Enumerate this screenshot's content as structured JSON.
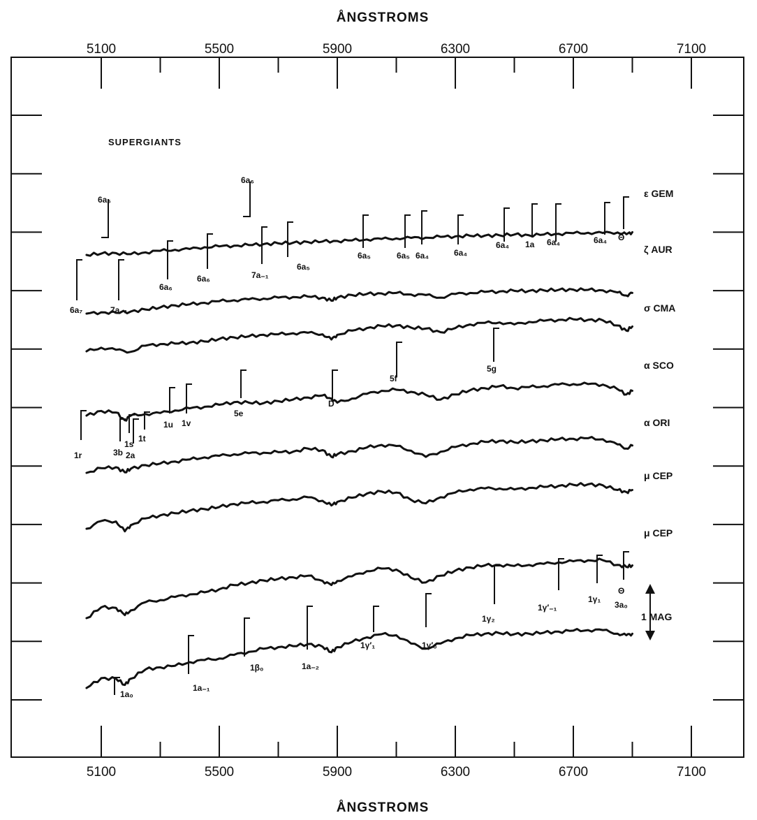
{
  "chart_data": {
    "type": "line",
    "x_axis_label_top": "ÅNGSTROMS",
    "x_axis_label_bottom": "ÅNGSTROMS",
    "x_range": [
      4800,
      7200
    ],
    "x_ticks": [
      5100,
      5500,
      5900,
      6300,
      6700,
      7100
    ],
    "x_ticks_labeled": [
      "5100",
      "5500",
      "5900",
      "6300",
      "6700",
      "7100"
    ],
    "x_minor_ticks": [
      5300,
      5700,
      6100,
      6500,
      6900
    ],
    "y_axis_values_printed": false,
    "group_label": "SUPERGIANTS",
    "scale_bar_label": "1 MAG",
    "scale_bar_magnitude": 1,
    "series": [
      {
        "name": "ε GEM",
        "x": [
          5050,
          5100,
          5150,
          5200,
          5250,
          5300,
          5350,
          5400,
          5450,
          5500,
          5550,
          5600,
          5650,
          5700,
          5750,
          5800,
          5850,
          5900,
          5950,
          6000,
          6050,
          6100,
          6150,
          6200,
          6250,
          6300,
          6350,
          6400,
          6450,
          6500,
          6550,
          6600,
          6650,
          6700,
          6750,
          6800,
          6850,
          6880,
          6900
        ],
        "y": [
          0.0,
          0.05,
          0.07,
          0.03,
          0.1,
          0.16,
          0.2,
          0.23,
          0.3,
          0.33,
          0.36,
          0.38,
          0.42,
          0.45,
          0.47,
          0.5,
          0.52,
          0.54,
          0.56,
          0.6,
          0.62,
          0.64,
          0.66,
          0.67,
          0.7,
          0.72,
          0.74,
          0.75,
          0.76,
          0.79,
          0.76,
          0.79,
          0.82,
          0.84,
          0.86,
          0.85,
          0.87,
          0.8,
          0.88
        ]
      },
      {
        "name": "ζ AUR",
        "x": [
          5050,
          5100,
          5150,
          5200,
          5250,
          5300,
          5350,
          5400,
          5450,
          5500,
          5550,
          5600,
          5650,
          5700,
          5750,
          5800,
          5850,
          5880,
          5900,
          5950,
          6000,
          6050,
          6100,
          6150,
          6200,
          6250,
          6300,
          6350,
          6400,
          6450,
          6500,
          6550,
          6600,
          6650,
          6700,
          6750,
          6800,
          6850,
          6880,
          6900
        ],
        "y": [
          0.0,
          0.05,
          0.03,
          0.08,
          0.16,
          0.24,
          0.32,
          0.36,
          0.42,
          0.48,
          0.52,
          0.55,
          0.58,
          0.62,
          0.64,
          0.66,
          0.62,
          0.5,
          0.62,
          0.72,
          0.76,
          0.78,
          0.8,
          0.74,
          0.72,
          0.62,
          0.76,
          0.8,
          0.84,
          0.86,
          0.88,
          0.88,
          0.9,
          0.92,
          0.93,
          0.92,
          0.9,
          0.82,
          0.7,
          0.8
        ]
      },
      {
        "name": "σ CMA",
        "x": [
          5050,
          5100,
          5150,
          5200,
          5250,
          5300,
          5350,
          5400,
          5450,
          5500,
          5550,
          5600,
          5650,
          5700,
          5750,
          5800,
          5850,
          5880,
          5900,
          5950,
          6000,
          6050,
          6100,
          6150,
          6200,
          6250,
          6300,
          6350,
          6400,
          6450,
          6500,
          6550,
          6600,
          6650,
          6700,
          6750,
          6800,
          6850,
          6880,
          6900
        ],
        "y": [
          0.0,
          0.14,
          0.06,
          -0.02,
          0.22,
          0.28,
          0.3,
          0.34,
          0.38,
          0.48,
          0.54,
          0.58,
          0.64,
          0.66,
          0.7,
          0.72,
          0.66,
          0.46,
          0.64,
          0.8,
          0.9,
          0.98,
          1.0,
          0.92,
          0.88,
          0.74,
          0.9,
          1.04,
          1.1,
          1.12,
          1.04,
          1.14,
          1.18,
          1.22,
          1.24,
          1.22,
          1.2,
          1.0,
          0.8,
          0.96
        ]
      },
      {
        "name": "α SCO",
        "x": [
          5050,
          5100,
          5150,
          5180,
          5200,
          5250,
          5300,
          5350,
          5400,
          5450,
          5500,
          5550,
          5600,
          5650,
          5700,
          5750,
          5800,
          5850,
          5880,
          5900,
          5950,
          6000,
          6050,
          6100,
          6150,
          6200,
          6250,
          6300,
          6350,
          6400,
          6450,
          6500,
          6550,
          6600,
          6650,
          6700,
          6750,
          6800,
          6850,
          6880,
          6900
        ],
        "y": [
          0.0,
          0.18,
          0.12,
          -0.18,
          0.0,
          0.06,
          0.1,
          0.2,
          0.28,
          0.34,
          0.42,
          0.52,
          0.5,
          0.48,
          0.56,
          0.62,
          0.7,
          0.78,
          0.66,
          0.5,
          0.66,
          0.84,
          0.96,
          1.0,
          0.92,
          0.8,
          0.62,
          0.82,
          0.98,
          1.06,
          1.14,
          1.06,
          1.1,
          1.14,
          1.2,
          1.22,
          1.22,
          1.2,
          1.02,
          0.82,
          0.96
        ]
      },
      {
        "name": "α ORI",
        "x": [
          5050,
          5100,
          5150,
          5180,
          5200,
          5250,
          5300,
          5350,
          5400,
          5450,
          5500,
          5550,
          5600,
          5650,
          5700,
          5750,
          5800,
          5850,
          5880,
          5900,
          5950,
          6000,
          6050,
          6100,
          6150,
          6200,
          6250,
          6300,
          6350,
          6400,
          6450,
          6500,
          6550,
          6600,
          6650,
          6700,
          6750,
          6800,
          6850,
          6880,
          6900
        ],
        "y": [
          0.0,
          0.18,
          0.22,
          0.02,
          0.16,
          0.3,
          0.36,
          0.44,
          0.52,
          0.6,
          0.66,
          0.72,
          0.76,
          0.78,
          0.8,
          0.82,
          0.94,
          0.88,
          0.62,
          0.72,
          0.84,
          0.98,
          1.08,
          1.04,
          0.86,
          0.62,
          0.82,
          1.0,
          1.12,
          1.2,
          1.24,
          1.18,
          1.22,
          1.26,
          1.3,
          1.32,
          1.34,
          1.3,
          1.1,
          0.94,
          1.06
        ]
      },
      {
        "name": "μ CEP",
        "x": [
          5050,
          5100,
          5150,
          5180,
          5200,
          5250,
          5300,
          5350,
          5400,
          5450,
          5500,
          5550,
          5600,
          5650,
          5700,
          5750,
          5800,
          5850,
          5880,
          5900,
          5950,
          6000,
          6050,
          6100,
          6150,
          6200,
          6250,
          6300,
          6350,
          6400,
          6450,
          6500,
          6550,
          6600,
          6650,
          6700,
          6750,
          6800,
          6850,
          6880,
          6900
        ],
        "y": [
          0.0,
          0.3,
          0.28,
          -0.1,
          0.14,
          0.4,
          0.52,
          0.6,
          0.7,
          0.76,
          0.84,
          0.96,
          1.0,
          1.04,
          1.1,
          1.14,
          1.22,
          1.08,
          0.9,
          1.04,
          1.2,
          1.36,
          1.44,
          1.4,
          1.12,
          0.98,
          1.22,
          1.4,
          1.52,
          1.56,
          1.56,
          1.52,
          1.58,
          1.62,
          1.66,
          1.7,
          1.72,
          1.68,
          1.5,
          1.42,
          1.5
        ]
      },
      {
        "name": "μ CEP",
        "x": [
          5050,
          5100,
          5150,
          5180,
          5200,
          5250,
          5300,
          5350,
          5400,
          5450,
          5500,
          5550,
          5600,
          5650,
          5700,
          5750,
          5800,
          5850,
          5880,
          5900,
          5950,
          6000,
          6050,
          6100,
          6150,
          6200,
          6250,
          6300,
          6350,
          6400,
          6450,
          6500,
          6550,
          6600,
          6650,
          6700,
          6750,
          6800,
          6850,
          6880,
          6900
        ],
        "y": [
          0.0,
          0.42,
          0.4,
          0.12,
          0.3,
          0.62,
          0.7,
          0.82,
          0.92,
          1.0,
          1.12,
          1.28,
          1.36,
          1.46,
          1.52,
          1.58,
          1.64,
          1.44,
          1.28,
          1.44,
          1.62,
          1.82,
          1.92,
          1.88,
          1.56,
          1.38,
          1.64,
          1.84,
          1.96,
          2.04,
          2.06,
          2.02,
          2.06,
          2.1,
          2.16,
          2.2,
          2.24,
          2.24,
          2.06,
          1.98,
          2.04
        ]
      },
      {
        "name": "",
        "x": [
          5050,
          5100,
          5150,
          5180,
          5200,
          5250,
          5300,
          5350,
          5400,
          5450,
          5500,
          5550,
          5600,
          5650,
          5700,
          5750,
          5800,
          5850,
          5880,
          5900,
          5950,
          6000,
          6050,
          6100,
          6150,
          6200,
          6250,
          6300,
          6350,
          6400,
          6450,
          6500,
          6550,
          6600,
          6650,
          6700,
          6750,
          6800,
          6850,
          6880,
          6900
        ],
        "y": [
          0.0,
          0.38,
          0.36,
          0.12,
          0.36,
          0.72,
          0.8,
          0.86,
          1.0,
          1.08,
          1.14,
          1.28,
          1.4,
          1.52,
          1.58,
          1.62,
          1.7,
          1.6,
          1.38,
          1.58,
          1.78,
          1.96,
          2.08,
          2.04,
          1.72,
          1.52,
          1.72,
          1.92,
          2.04,
          2.1,
          2.12,
          2.08,
          2.1,
          2.14,
          2.18,
          2.22,
          2.24,
          2.24,
          2.1,
          2.04,
          2.1
        ]
      }
    ],
    "annotations": [
      {
        "label": "6a₆",
        "wavelength": 5120,
        "attached_to": "ε GEM"
      },
      {
        "label": "6a₆",
        "wavelength": 5580,
        "attached_to": "ε GEM"
      },
      {
        "label": "6a₇",
        "wavelength": 5060,
        "attached_to": "ε GEM"
      },
      {
        "label": "7a₋₁",
        "wavelength": 5140,
        "attached_to": "ε GEM"
      },
      {
        "label": "6a₆",
        "wavelength": 5310,
        "attached_to": "ε GEM"
      },
      {
        "label": "6a₆",
        "wavelength": 5430,
        "attached_to": "ε GEM"
      },
      {
        "label": "7a₋₁",
        "wavelength": 5620,
        "attached_to": "ε GEM"
      },
      {
        "label": "6a₅",
        "wavelength": 5740,
        "attached_to": "ε GEM"
      },
      {
        "label": "6a₅",
        "wavelength": 5970,
        "attached_to": "ε GEM"
      },
      {
        "label": "6a₅",
        "wavelength": 6110,
        "attached_to": "ε GEM"
      },
      {
        "label": "6a₄",
        "wavelength": 6150,
        "attached_to": "ε GEM"
      },
      {
        "label": "6a₄",
        "wavelength": 6300,
        "attached_to": "ε GEM"
      },
      {
        "label": "6a₄",
        "wavelength": 6480,
        "attached_to": "ε GEM"
      },
      {
        "label": "1a",
        "wavelength": 6570,
        "attached_to": "ε GEM"
      },
      {
        "label": "6a₄",
        "wavelength": 6650,
        "attached_to": "ε GEM"
      },
      {
        "label": "6a₄",
        "wavelength": 6810,
        "attached_to": "ε GEM"
      },
      {
        "label": "Θ",
        "wavelength": 6880,
        "attached_to": "ε GEM"
      },
      {
        "label": "D",
        "wavelength": 5893,
        "attached_to": "σ CMA"
      },
      {
        "label": "5f",
        "wavelength": 6090,
        "attached_to": "σ CMA"
      },
      {
        "label": "5g",
        "wavelength": 6440,
        "attached_to": "σ CMA"
      },
      {
        "label": "5e",
        "wavelength": 5640,
        "attached_to": "σ CMA"
      },
      {
        "label": "1r",
        "wavelength": 5070,
        "attached_to": "α SCO"
      },
      {
        "label": "3b",
        "wavelength": 5170,
        "attached_to": "α SCO"
      },
      {
        "label": "1s",
        "wavelength": 5190,
        "attached_to": "α SCO"
      },
      {
        "label": "2a",
        "wavelength": 5200,
        "attached_to": "α SCO"
      },
      {
        "label": "1t",
        "wavelength": 5240,
        "attached_to": "α SCO"
      },
      {
        "label": "1u",
        "wavelength": 5350,
        "attached_to": "α SCO"
      },
      {
        "label": "1v",
        "wavelength": 5410,
        "attached_to": "α SCO"
      },
      {
        "label": "1a₀",
        "wavelength": 5160,
        "attached_to": "bottom"
      },
      {
        "label": "1a₋₁",
        "wavelength": 5430,
        "attached_to": "bottom"
      },
      {
        "label": "1β₀",
        "wavelength": 5680,
        "attached_to": "bottom"
      },
      {
        "label": "1a₋₂",
        "wavelength": 5840,
        "attached_to": "bottom"
      },
      {
        "label": "1γ′₁",
        "wavelength": 6010,
        "attached_to": "bottom"
      },
      {
        "label": "1γ′₀",
        "wavelength": 6200,
        "attached_to": "bottom"
      },
      {
        "label": "1γ₂",
        "wavelength": 6430,
        "attached_to": "bottom"
      },
      {
        "label": "1γ′₋₁",
        "wavelength": 6620,
        "attached_to": "bottom"
      },
      {
        "label": "1γ₁",
        "wavelength": 6750,
        "attached_to": "bottom"
      },
      {
        "label": "Θ",
        "wavelength": 6880,
        "attached_to": "bottom"
      },
      {
        "label": "3a₀",
        "wavelength": 6880,
        "attached_to": "bottom"
      }
    ],
    "grid": false,
    "legend": "none; series labels printed at right end of each curve"
  }
}
